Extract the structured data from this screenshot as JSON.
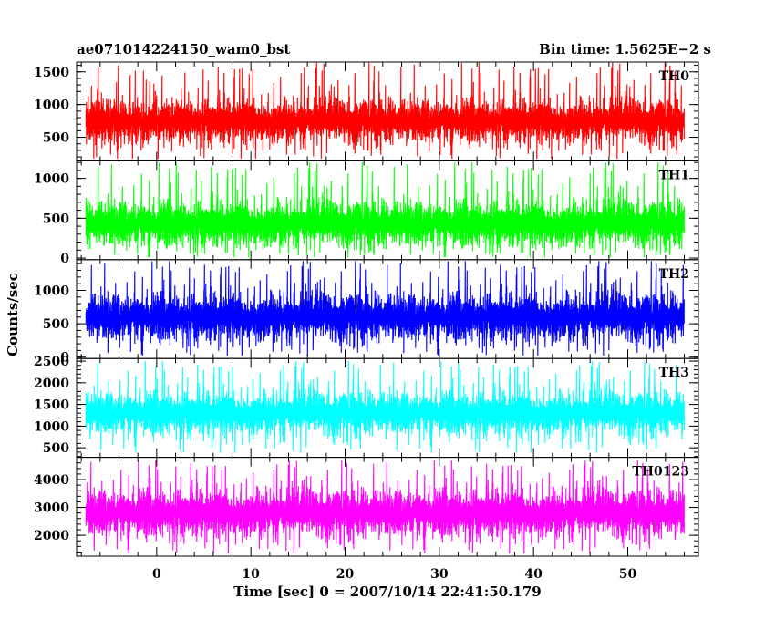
{
  "chart_data": {
    "type": "line",
    "title_left": "ae071014224150_wam0_bst",
    "title_right": "Bin time: 1.5625E−2 s",
    "xlabel": "Time [sec] 0 = 2007/10/14 22:41:50.179",
    "ylabel": "Counts/sec",
    "xlim": [
      -8.5,
      57.5
    ],
    "x_ticks": [
      "0",
      "10",
      "20",
      "30",
      "40",
      "50"
    ],
    "x_tick_values": [
      0,
      10,
      20,
      30,
      40,
      50
    ],
    "data_x_range": [
      -7.5,
      56
    ],
    "panels": [
      {
        "name": "TH0",
        "color": "#ff0000",
        "ylim": [
          140,
          1650
        ],
        "y_ticks": [
          "500",
          "1000",
          "1500"
        ],
        "y_tick_values": [
          500,
          1000,
          1500
        ],
        "mean": 750,
        "spread": 150,
        "min": 170,
        "max": 1640
      },
      {
        "name": "TH1",
        "color": "#00ff00",
        "ylim": [
          -20,
          1220
        ],
        "y_ticks": [
          "0",
          "500",
          "1000"
        ],
        "y_tick_values": [
          0,
          500,
          1000
        ],
        "mean": 430,
        "spread": 130,
        "min": 10,
        "max": 1200
      },
      {
        "name": "TH2",
        "color": "#0000ff",
        "ylim": [
          -20,
          1460
        ],
        "y_ticks": [
          "0",
          "500",
          "1000"
        ],
        "y_tick_values": [
          0,
          500,
          1000
        ],
        "mean": 600,
        "spread": 160,
        "min": 20,
        "max": 1440
      },
      {
        "name": "TH3",
        "color": "#00ffff",
        "ylim": [
          280,
          2560
        ],
        "y_ticks": [
          "500",
          "1000",
          "1500",
          "2000",
          "2500"
        ],
        "y_tick_values": [
          500,
          1000,
          1500,
          2000,
          2500
        ],
        "mean": 1300,
        "spread": 220,
        "min": 380,
        "max": 2500
      },
      {
        "name": "TH0123",
        "color": "#ff00ff",
        "ylim": [
          1250,
          4800
        ],
        "y_ticks": [
          "2000",
          "3000",
          "4000"
        ],
        "y_tick_values": [
          2000,
          3000,
          4000
        ],
        "mean": 2800,
        "spread": 380,
        "min": 1350,
        "max": 4700
      }
    ]
  }
}
